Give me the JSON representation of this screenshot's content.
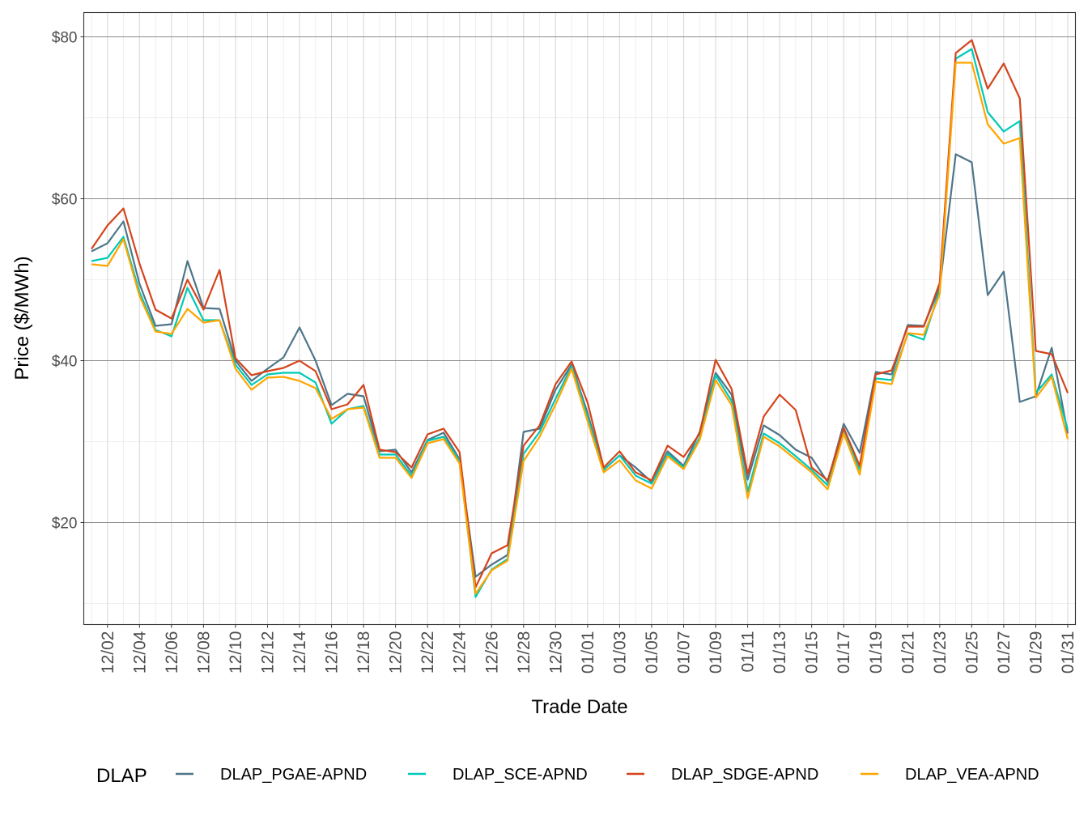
{
  "chart_data": {
    "type": "line",
    "xlabel": "Trade Date",
    "ylabel": "Price ($/MWh)",
    "ylim": [
      7.4,
      83
    ],
    "y_ticks": [
      20,
      40,
      60,
      80
    ],
    "y_tick_labels": [
      "$20",
      "$40",
      "$60",
      "$80"
    ],
    "grid": true,
    "legend": {
      "title": "DLAP",
      "position": "bottom"
    },
    "x": [
      "12/01",
      "12/02",
      "12/03",
      "12/04",
      "12/05",
      "12/06",
      "12/07",
      "12/08",
      "12/09",
      "12/10",
      "12/11",
      "12/12",
      "12/13",
      "12/14",
      "12/15",
      "12/16",
      "12/17",
      "12/18",
      "12/19",
      "12/20",
      "12/21",
      "12/22",
      "12/23",
      "12/24",
      "12/25",
      "12/26",
      "12/27",
      "12/28",
      "12/29",
      "12/30",
      "12/31",
      "01/01",
      "01/02",
      "01/03",
      "01/04",
      "01/05",
      "01/06",
      "01/07",
      "01/08",
      "01/09",
      "01/10",
      "01/11",
      "01/12",
      "01/13",
      "01/14",
      "01/15",
      "01/16",
      "01/17",
      "01/18",
      "01/19",
      "01/20",
      "01/21",
      "01/22",
      "01/23",
      "01/24",
      "01/25",
      "01/26",
      "01/27",
      "01/28",
      "01/29",
      "01/30",
      "01/31"
    ],
    "x_tick_labels": [
      "12/02",
      "12/04",
      "12/06",
      "12/08",
      "12/10",
      "12/12",
      "12/14",
      "12/16",
      "12/18",
      "12/20",
      "12/22",
      "12/24",
      "12/26",
      "12/28",
      "12/30",
      "01/01",
      "01/03",
      "01/05",
      "01/07",
      "01/09",
      "01/11",
      "01/13",
      "01/15",
      "01/17",
      "01/19",
      "01/21",
      "01/23",
      "01/25",
      "01/27",
      "01/29",
      "01/31"
    ],
    "series": [
      {
        "name": "DLAP_PGAE-APND",
        "color": "#4e7589",
        "values": [
          53.5,
          54.5,
          57.2,
          49.5,
          44.3,
          44.5,
          52.3,
          46.5,
          46.4,
          40.0,
          37.5,
          39.0,
          40.4,
          44.1,
          40.0,
          34.5,
          35.9,
          35.6,
          28.8,
          29.0,
          26.2,
          30.2,
          31.1,
          27.8,
          13.3,
          14.8,
          16.0,
          31.2,
          31.6,
          36.4,
          39.5,
          33.5,
          26.5,
          28.3,
          26.8,
          25.0,
          28.8,
          27.0,
          31.2,
          38.5,
          35.8,
          25.3,
          32.0,
          30.8,
          29.0,
          28.0,
          25.0,
          32.2,
          28.6,
          38.6,
          38.3,
          44.4,
          44.3,
          49.0,
          65.5,
          64.5,
          48.1,
          51.0,
          34.9,
          35.6,
          41.6,
          31.0
        ]
      },
      {
        "name": "DLAP_SCE-APND",
        "color": "#00c9b7",
        "values": [
          52.3,
          52.7,
          55.3,
          48.5,
          43.8,
          43.0,
          49.0,
          45.0,
          45.0,
          39.5,
          37.0,
          38.3,
          38.5,
          38.5,
          37.3,
          32.2,
          34.0,
          34.4,
          28.4,
          28.4,
          25.8,
          30.1,
          30.6,
          27.6,
          10.8,
          14.2,
          15.5,
          28.5,
          31.2,
          35.3,
          39.3,
          33.0,
          26.5,
          28.3,
          25.8,
          24.8,
          28.5,
          26.8,
          30.5,
          38.2,
          35.0,
          23.8,
          31.0,
          29.8,
          28.2,
          26.5,
          24.6,
          31.5,
          26.5,
          37.8,
          37.6,
          43.3,
          42.6,
          48.7,
          77.3,
          78.5,
          70.7,
          68.3,
          69.6,
          36.0,
          38.3,
          31.5
        ]
      },
      {
        "name": "DLAP_SDGE-APND",
        "color": "#d4441c",
        "values": [
          53.8,
          56.7,
          58.8,
          52.0,
          46.3,
          45.2,
          50.0,
          46.3,
          51.2,
          40.3,
          38.2,
          38.7,
          39.1,
          40.0,
          38.7,
          34.0,
          34.6,
          37.0,
          29.0,
          28.7,
          26.8,
          30.9,
          31.6,
          28.7,
          12.0,
          16.2,
          17.2,
          29.5,
          32.0,
          37.1,
          39.9,
          34.8,
          26.8,
          28.8,
          26.2,
          25.2,
          29.5,
          28.1,
          31.0,
          40.1,
          36.5,
          26.0,
          33.1,
          35.8,
          33.9,
          26.8,
          25.2,
          31.7,
          27.0,
          38.3,
          38.8,
          44.2,
          44.2,
          49.6,
          78.0,
          79.6,
          73.6,
          76.7,
          72.4,
          41.2,
          40.8,
          36.0
        ]
      },
      {
        "name": "DLAP_VEA-APND",
        "color": "#ffa500",
        "values": [
          51.9,
          51.7,
          55.0,
          48.0,
          43.6,
          43.3,
          46.4,
          44.7,
          45.0,
          39.0,
          36.4,
          37.9,
          38.0,
          37.5,
          36.6,
          32.8,
          34.0,
          34.2,
          28.0,
          28.0,
          25.5,
          29.8,
          30.3,
          27.3,
          11.2,
          14.1,
          15.3,
          27.6,
          30.6,
          34.6,
          39.0,
          32.5,
          26.2,
          27.7,
          25.2,
          24.2,
          28.2,
          26.6,
          30.2,
          37.6,
          34.5,
          23.0,
          30.6,
          29.4,
          27.8,
          26.2,
          24.1,
          31.0,
          25.9,
          37.4,
          37.1,
          43.4,
          43.2,
          48.2,
          76.8,
          76.8,
          69.2,
          66.8,
          67.5,
          35.4,
          38.0,
          30.3
        ]
      }
    ]
  }
}
